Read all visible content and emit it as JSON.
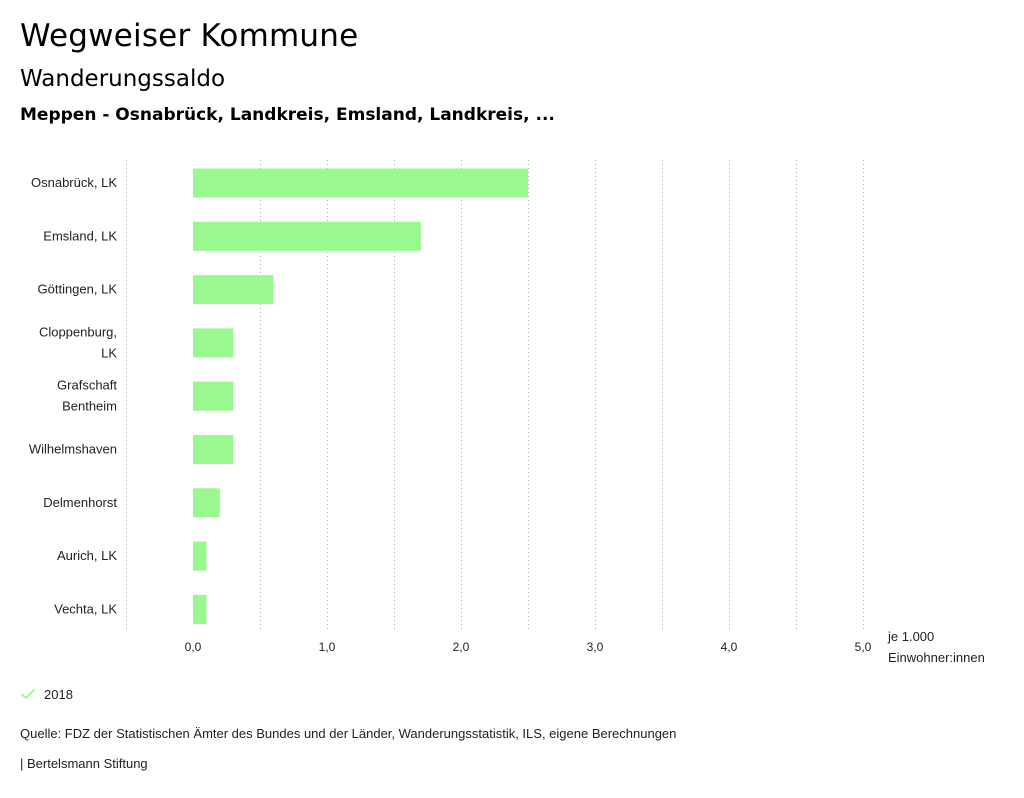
{
  "header": {
    "title": "Wegweiser Kommune",
    "subtitle": "Wanderungssaldo",
    "context": "Meppen - Osnabrück, Landkreis, Emsland, Landkreis, ..."
  },
  "chart_data": {
    "type": "bar",
    "orientation": "horizontal",
    "categories": [
      [
        "Osnabrück, LK"
      ],
      [
        "Emsland, LK"
      ],
      [
        "Göttingen, LK"
      ],
      [
        "Cloppenburg,",
        "LK"
      ],
      [
        "Grafschaft",
        "Bentheim"
      ],
      [
        "Wilhelmshaven"
      ],
      [
        "Delmenhorst"
      ],
      [
        "Aurich, LK"
      ],
      [
        "Vechta, LK"
      ]
    ],
    "series": [
      {
        "name": "2018",
        "values": [
          2.5,
          1.7,
          0.6,
          0.3,
          0.3,
          0.3,
          0.2,
          0.1,
          0.1
        ]
      }
    ],
    "xlim": [
      -0.5,
      5.0
    ],
    "ticks": [
      0,
      1,
      2,
      3,
      4,
      5
    ],
    "tick_labels": [
      "0,0",
      "1,0",
      "2,0",
      "3,0",
      "4,0",
      "5,0"
    ],
    "minor_gridlines": [
      -0.5,
      0.5,
      1.5,
      2.5,
      3.5,
      4.5
    ],
    "xlabel": [
      "je 1.000",
      "Einwohner:innen"
    ],
    "grid": "vertical-dotted",
    "bar_color": "#99f98f",
    "gridline_color": "#aaaaaa"
  },
  "legend": {
    "label": "2018",
    "icon": "check-icon",
    "color": "#99f98f"
  },
  "footer": {
    "source": "Quelle: FDZ der Statistischen Ämter des Bundes und der Länder, Wanderungsstatistik, ILS, eigene Berechnungen",
    "publisher": "| Bertelsmann Stiftung"
  }
}
